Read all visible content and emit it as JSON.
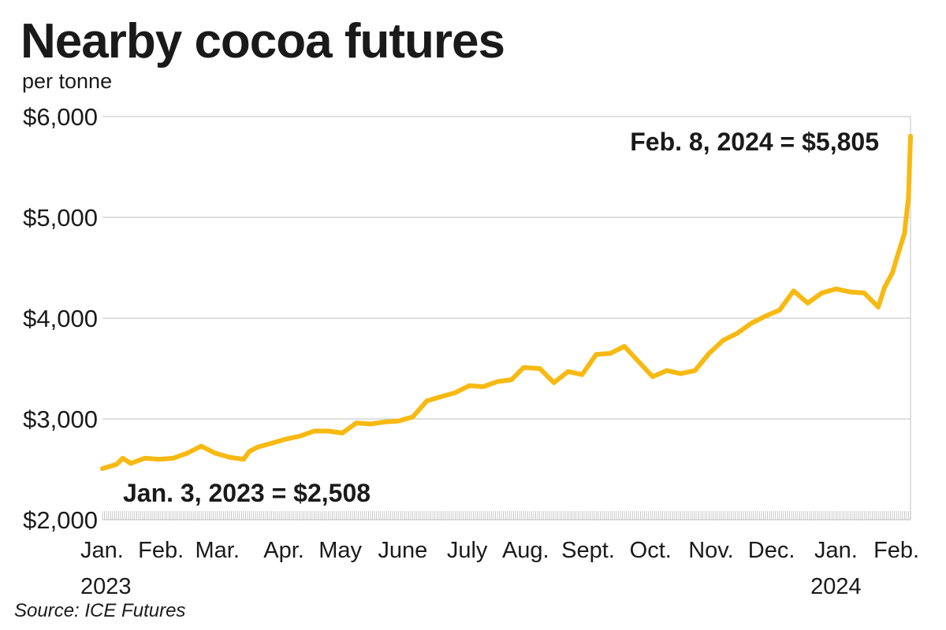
{
  "title": "Nearby cocoa futures",
  "subtitle": "per tonne",
  "source": "Source: ICE Futures",
  "colors": {
    "line": "#f7b912",
    "grid": "#cccccc",
    "text": "#1a1a1a",
    "tick": "#bbbbbb"
  },
  "chart_data": {
    "type": "line",
    "title": "Nearby cocoa futures",
    "subtitle": "per tonne",
    "xlabel": "",
    "ylabel": "",
    "ylim": [
      2000,
      6000
    ],
    "yticks": [
      2000,
      3000,
      4000,
      5000,
      6000
    ],
    "ytick_labels": [
      "$2,000",
      "$3,000",
      "$4,000",
      "$5,000",
      "$6,000"
    ],
    "xlim": [
      "2023-01-03",
      "2024-02-08"
    ],
    "grid": true,
    "months": [
      {
        "label": "Jan.",
        "year": "2023",
        "date": "2023-01-03"
      },
      {
        "label": "Feb.",
        "year": "",
        "date": "2023-02-01"
      },
      {
        "label": "Mar.",
        "year": "",
        "date": "2023-03-01"
      },
      {
        "label": "Apr.",
        "year": "",
        "date": "2023-04-03"
      },
      {
        "label": "May",
        "year": "",
        "date": "2023-05-01"
      },
      {
        "label": "June",
        "year": "",
        "date": "2023-06-01"
      },
      {
        "label": "July",
        "year": "",
        "date": "2023-07-03"
      },
      {
        "label": "Aug.",
        "year": "",
        "date": "2023-08-01"
      },
      {
        "label": "Sept.",
        "year": "",
        "date": "2023-09-01"
      },
      {
        "label": "Oct.",
        "year": "",
        "date": "2023-10-02"
      },
      {
        "label": "Nov.",
        "year": "",
        "date": "2023-11-01"
      },
      {
        "label": "Dec.",
        "year": "",
        "date": "2023-12-01"
      },
      {
        "label": "Jan.",
        "year": "2024",
        "date": "2024-01-02"
      },
      {
        "label": "Feb.",
        "year": "",
        "date": "2024-02-01"
      }
    ],
    "series": [
      {
        "x": [
          "2023-01-03",
          "2023-01-10",
          "2023-01-13",
          "2023-01-17",
          "2023-01-24",
          "2023-01-31",
          "2023-02-07",
          "2023-02-14",
          "2023-02-21",
          "2023-02-28",
          "2023-03-07",
          "2023-03-14",
          "2023-03-17",
          "2023-03-21",
          "2023-03-28",
          "2023-04-04",
          "2023-04-11",
          "2023-04-18",
          "2023-04-25",
          "2023-05-02",
          "2023-05-09",
          "2023-05-16",
          "2023-05-23",
          "2023-05-30",
          "2023-06-06",
          "2023-06-13",
          "2023-06-20",
          "2023-06-27",
          "2023-07-04",
          "2023-07-11",
          "2023-07-18",
          "2023-07-25",
          "2023-07-31",
          "2023-08-08",
          "2023-08-15",
          "2023-08-22",
          "2023-08-29",
          "2023-09-05",
          "2023-09-12",
          "2023-09-19",
          "2023-09-26",
          "2023-10-03",
          "2023-10-10",
          "2023-10-17",
          "2023-10-24",
          "2023-10-31",
          "2023-11-07",
          "2023-11-14",
          "2023-11-21",
          "2023-11-28",
          "2023-12-05",
          "2023-12-12",
          "2023-12-19",
          "2023-12-26",
          "2024-01-02",
          "2024-01-09",
          "2024-01-16",
          "2024-01-23",
          "2024-01-26",
          "2024-01-30",
          "2024-02-02",
          "2024-02-05",
          "2024-02-07",
          "2024-02-08"
        ],
        "y": [
          2508,
          2550,
          2610,
          2560,
          2610,
          2600,
          2610,
          2660,
          2730,
          2660,
          2620,
          2600,
          2680,
          2720,
          2760,
          2800,
          2830,
          2880,
          2880,
          2860,
          2960,
          2950,
          2970,
          2980,
          3020,
          3180,
          3220,
          3260,
          3330,
          3320,
          3370,
          3390,
          3510,
          3500,
          3360,
          3470,
          3440,
          3640,
          3650,
          3720,
          3570,
          3420,
          3480,
          3450,
          3480,
          3650,
          3780,
          3850,
          3950,
          4020,
          4080,
          4270,
          4150,
          4250,
          4290,
          4260,
          4250,
          4110,
          4300,
          4450,
          4650,
          4840,
          5200,
          5805
        ]
      }
    ],
    "annotations": [
      {
        "text": "Jan. 3, 2023 = $2,508",
        "x": "2023-01-03",
        "y": 2508
      },
      {
        "text": "Feb. 8, 2024 = $5,805",
        "x": "2024-02-08",
        "y": 5805
      }
    ]
  }
}
